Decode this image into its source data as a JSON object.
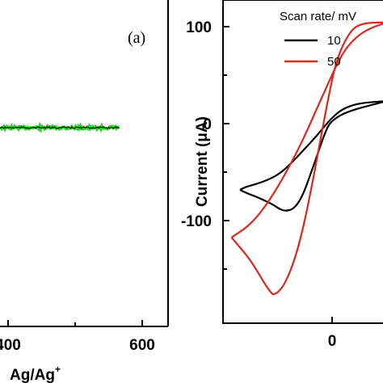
{
  "chart_data": [
    {
      "type": "line",
      "panel_label": "(a)",
      "xlabel": "Ag/Ag⁺",
      "xticks": [
        "400",
        "600"
      ],
      "x_visible_range": [
        380,
        690
      ],
      "series": [
        {
          "color": "#2ad62a",
          "values_x": [
            380,
            600
          ],
          "values_y": [
            0,
            0
          ]
        },
        {
          "color": "#111111",
          "values_x": [
            380,
            600
          ],
          "values_y": [
            0,
            0
          ]
        }
      ],
      "grid": false
    },
    {
      "type": "line",
      "ylabel": "Current (μA)",
      "yticks": [
        "100",
        "0",
        "-100"
      ],
      "xticks": [
        "0"
      ],
      "xlim": [
        -0.09,
        0.21
      ],
      "ylim": [
        -200,
        120
      ],
      "legend": {
        "title": "Scan rate/ mV",
        "placement": "top-right",
        "entries": [
          {
            "label": "10",
            "color": "#000000"
          },
          {
            "label": "50",
            "color": "#d9281e"
          }
        ]
      },
      "series": [
        {
          "name": "10",
          "color": "#000000",
          "x": [
            -0.06,
            -0.045,
            -0.03,
            -0.015,
            0.0,
            0.01,
            0.02,
            0.035,
            0.05,
            0.065,
            0.08,
            0.09,
            0.1,
            0.13,
            0.2,
            0.2,
            0.15,
            0.12,
            0.1,
            0.085,
            0.07,
            0.05,
            0.03,
            0.01,
            -0.01,
            -0.03,
            -0.05,
            -0.06
          ],
          "y": [
            -68,
            -72,
            -75,
            -79,
            -83,
            -87,
            -89,
            -87,
            -75,
            -52,
            -28,
            -12,
            0,
            10,
            20,
            20,
            18,
            12,
            2,
            -8,
            -18,
            -30,
            -42,
            -52,
            -58,
            -62,
            -65,
            -68
          ]
        },
        {
          "name": "50",
          "color": "#d9281e",
          "x": [
            -0.075,
            -0.06,
            -0.045,
            -0.03,
            -0.015,
            -0.005,
            0.0,
            0.01,
            0.02,
            0.035,
            0.05,
            0.065,
            0.08,
            0.095,
            0.11,
            0.13,
            0.15,
            0.2,
            0.2,
            0.16,
            0.13,
            0.11,
            0.09,
            0.07,
            0.05,
            0.03,
            0.01,
            -0.01,
            -0.03,
            -0.05,
            -0.075
          ],
          "y": [
            -115,
            -125,
            -135,
            -148,
            -162,
            -170,
            -172,
            -168,
            -160,
            -140,
            -110,
            -70,
            -25,
            20,
            60,
            85,
            97,
            98,
            98,
            90,
            75,
            55,
            30,
            5,
            -20,
            -42,
            -62,
            -80,
            -95,
            -106,
            -115
          ]
        }
      ],
      "grid": false
    }
  ]
}
